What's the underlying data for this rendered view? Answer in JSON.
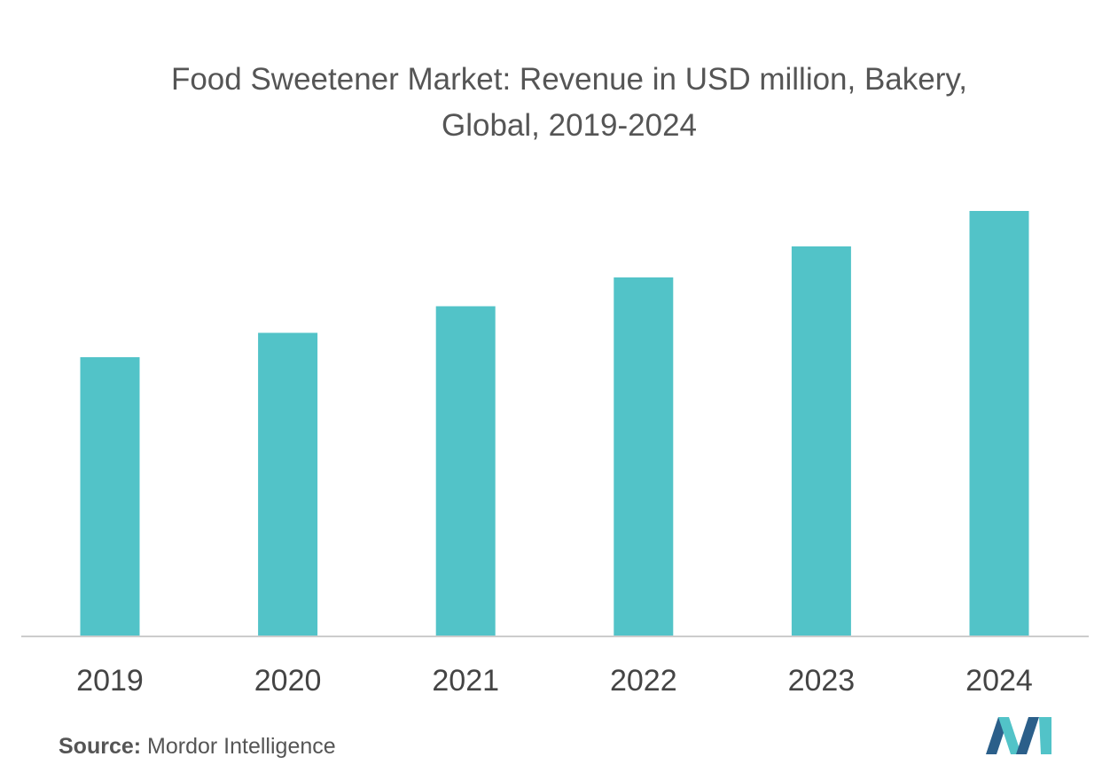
{
  "title_line1": "Food Sweetener Market: Revenue in USD million, Bakery,",
  "title_line2": "Global, 2019-2024",
  "source_label": "Source:",
  "source_text": "Mordor Intelligence",
  "colors": {
    "bar": "#52c3c8",
    "axis": "#cccccc",
    "tick_text": "#444444",
    "title": "#555555",
    "logo_dark": "#2b5f8a",
    "logo_light": "#52c3c8"
  },
  "logo_icon": "mordor-intelligence-logo-icon",
  "chart_data": {
    "type": "bar",
    "title": "Food Sweetener Market: Revenue in USD million, Bakery, Global, 2019-2024",
    "categories": [
      "2019",
      "2020",
      "2021",
      "2022",
      "2023",
      "2024"
    ],
    "values": [
      63,
      68.5,
      74.5,
      81,
      88,
      96
    ],
    "ylim": [
      0,
      100
    ],
    "xlabel": "",
    "ylabel": "",
    "grid": false,
    "legend": "none"
  }
}
